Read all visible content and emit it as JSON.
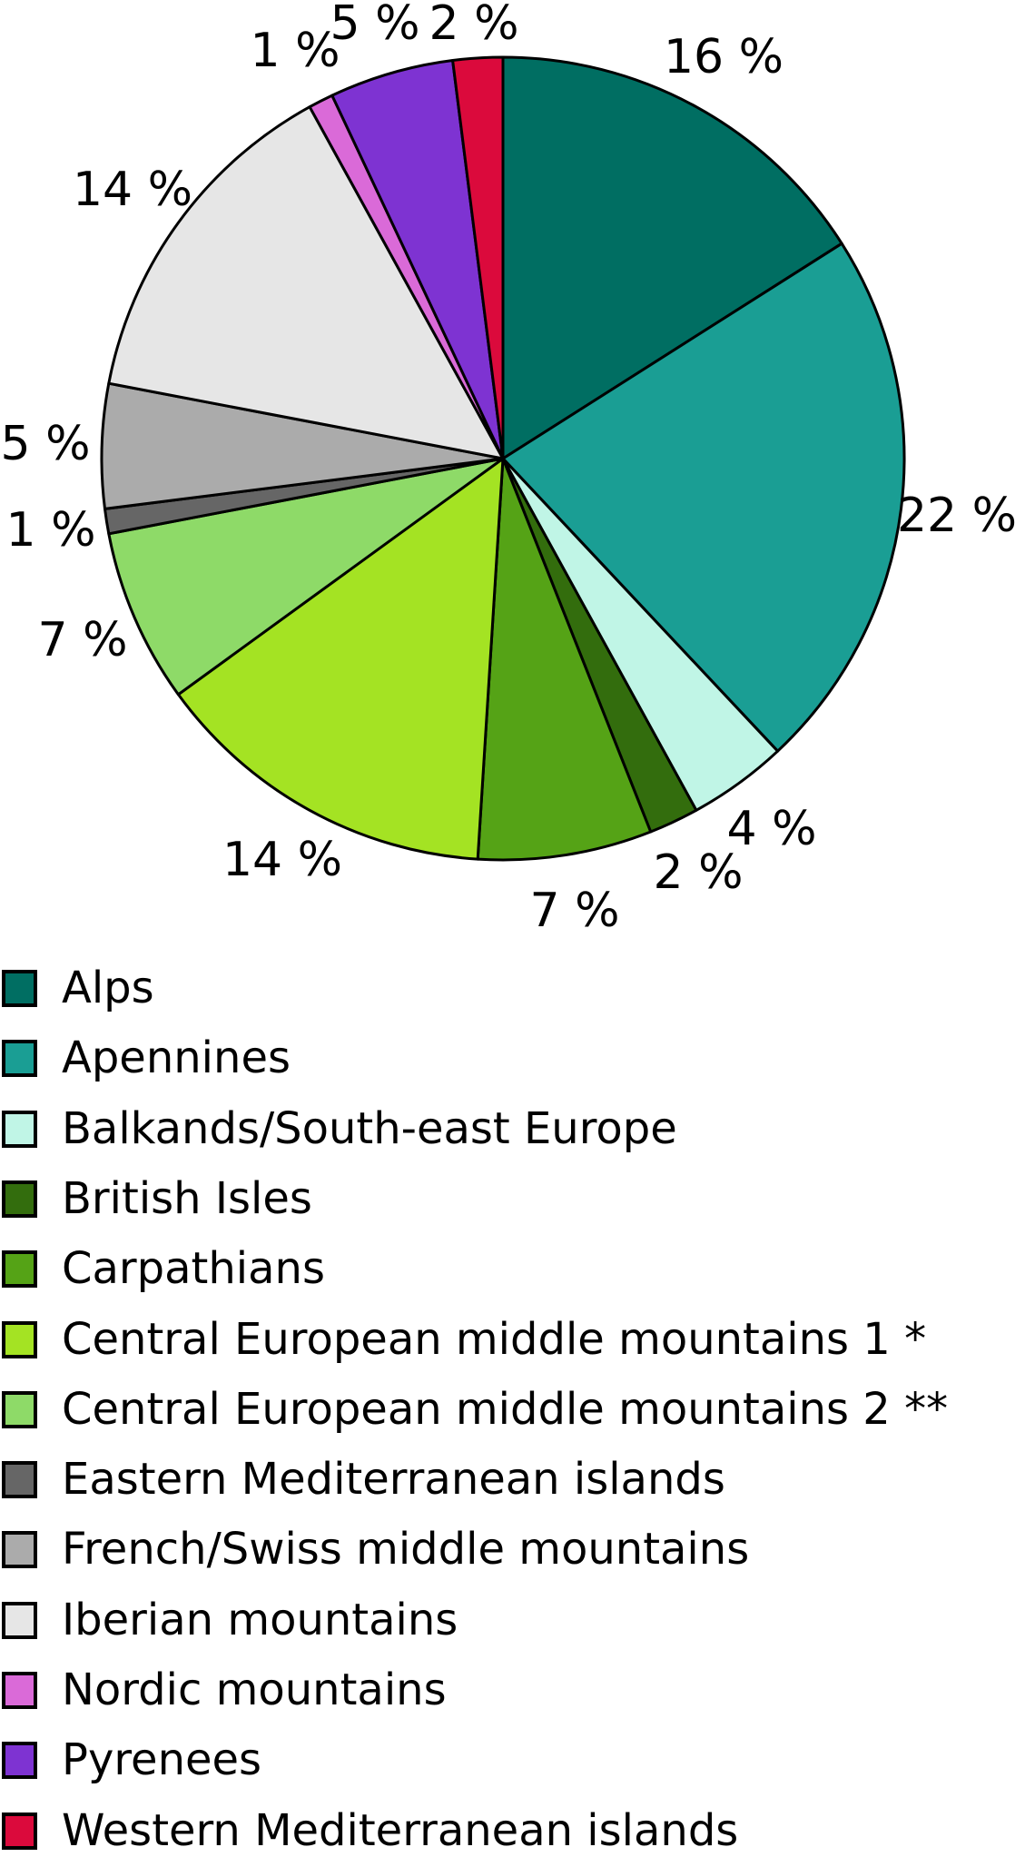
{
  "chart_data": {
    "type": "pie",
    "title": "",
    "direction": "clockwise",
    "start_angle_deg_from_top": 0,
    "value_label_suffix": " %",
    "slice_border_color": "#000000",
    "legend_position": "bottom-left",
    "slices": [
      {
        "label": "Alps",
        "value": 16,
        "value_label": "16 %",
        "color": "#006E62"
      },
      {
        "label": "Apennines",
        "value": 22,
        "value_label": "22 %",
        "color": "#1A9E94"
      },
      {
        "label": "Balkands/South-east Europe",
        "value": 4,
        "value_label": "4 %",
        "color": "#C0F5E6"
      },
      {
        "label": "British Isles",
        "value": 2,
        "value_label": "2 %",
        "color": "#336D0D"
      },
      {
        "label": "Carpathians",
        "value": 7,
        "value_label": "7 %",
        "color": "#55A316"
      },
      {
        "label": "Central European middle mountains 1 *",
        "value": 14,
        "value_label": "14 %",
        "color": "#A4E323"
      },
      {
        "label": "Central European middle mountains 2 **",
        "value": 7,
        "value_label": "7 %",
        "color": "#8EDA68"
      },
      {
        "label": "Eastern Mediterranean islands",
        "value": 1,
        "value_label": "1 %",
        "color": "#666666"
      },
      {
        "label": "French/Swiss middle mountains",
        "value": 5,
        "value_label": "5 %",
        "color": "#ABABAB"
      },
      {
        "label": "Iberian mountains",
        "value": 14,
        "value_label": "14 %",
        "color": "#E6E6E6"
      },
      {
        "label": "Nordic mountains",
        "value": 1,
        "value_label": "1 %",
        "color": "#DA6AD8"
      },
      {
        "label": "Pyrenees",
        "value": 5,
        "value_label": "5 %",
        "color": "#7E33D2"
      },
      {
        "label": "Western Mediterranean islands",
        "value": 2,
        "value_label": "2 %",
        "color": "#DB0A3C"
      }
    ]
  }
}
